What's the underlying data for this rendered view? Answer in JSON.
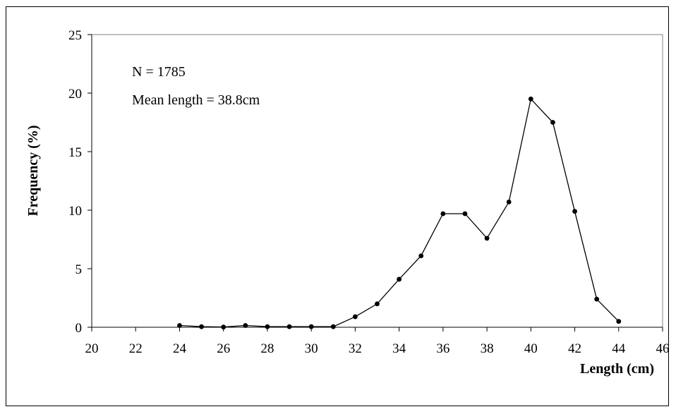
{
  "chart_data": {
    "type": "line",
    "xlabel": "Length (cm)",
    "ylabel": "Frequency (%)",
    "xlim": [
      20,
      46
    ],
    "ylim": [
      0,
      25
    ],
    "x_ticks": [
      20,
      22,
      24,
      26,
      28,
      30,
      32,
      34,
      36,
      38,
      40,
      42,
      44,
      46
    ],
    "y_ticks": [
      0,
      5,
      10,
      15,
      20,
      25
    ],
    "annotations": [
      "N = 1785",
      "Mean length = 38.8cm"
    ],
    "grid": false,
    "legend": "none",
    "line_color": "#000000",
    "marker_color": "#000000",
    "series": [
      {
        "x": [
          24,
          25,
          26,
          27,
          28,
          29,
          30,
          31,
          32,
          33,
          34,
          35,
          36,
          37,
          38,
          39,
          40,
          41,
          42,
          43,
          44
        ],
        "values": [
          0.15,
          0.05,
          0.02,
          0.15,
          0.05,
          0.05,
          0.05,
          0.05,
          0.9,
          2.0,
          4.1,
          6.1,
          9.7,
          9.7,
          7.6,
          10.7,
          19.5,
          17.5,
          9.9,
          2.4,
          0.5
        ]
      }
    ]
  }
}
